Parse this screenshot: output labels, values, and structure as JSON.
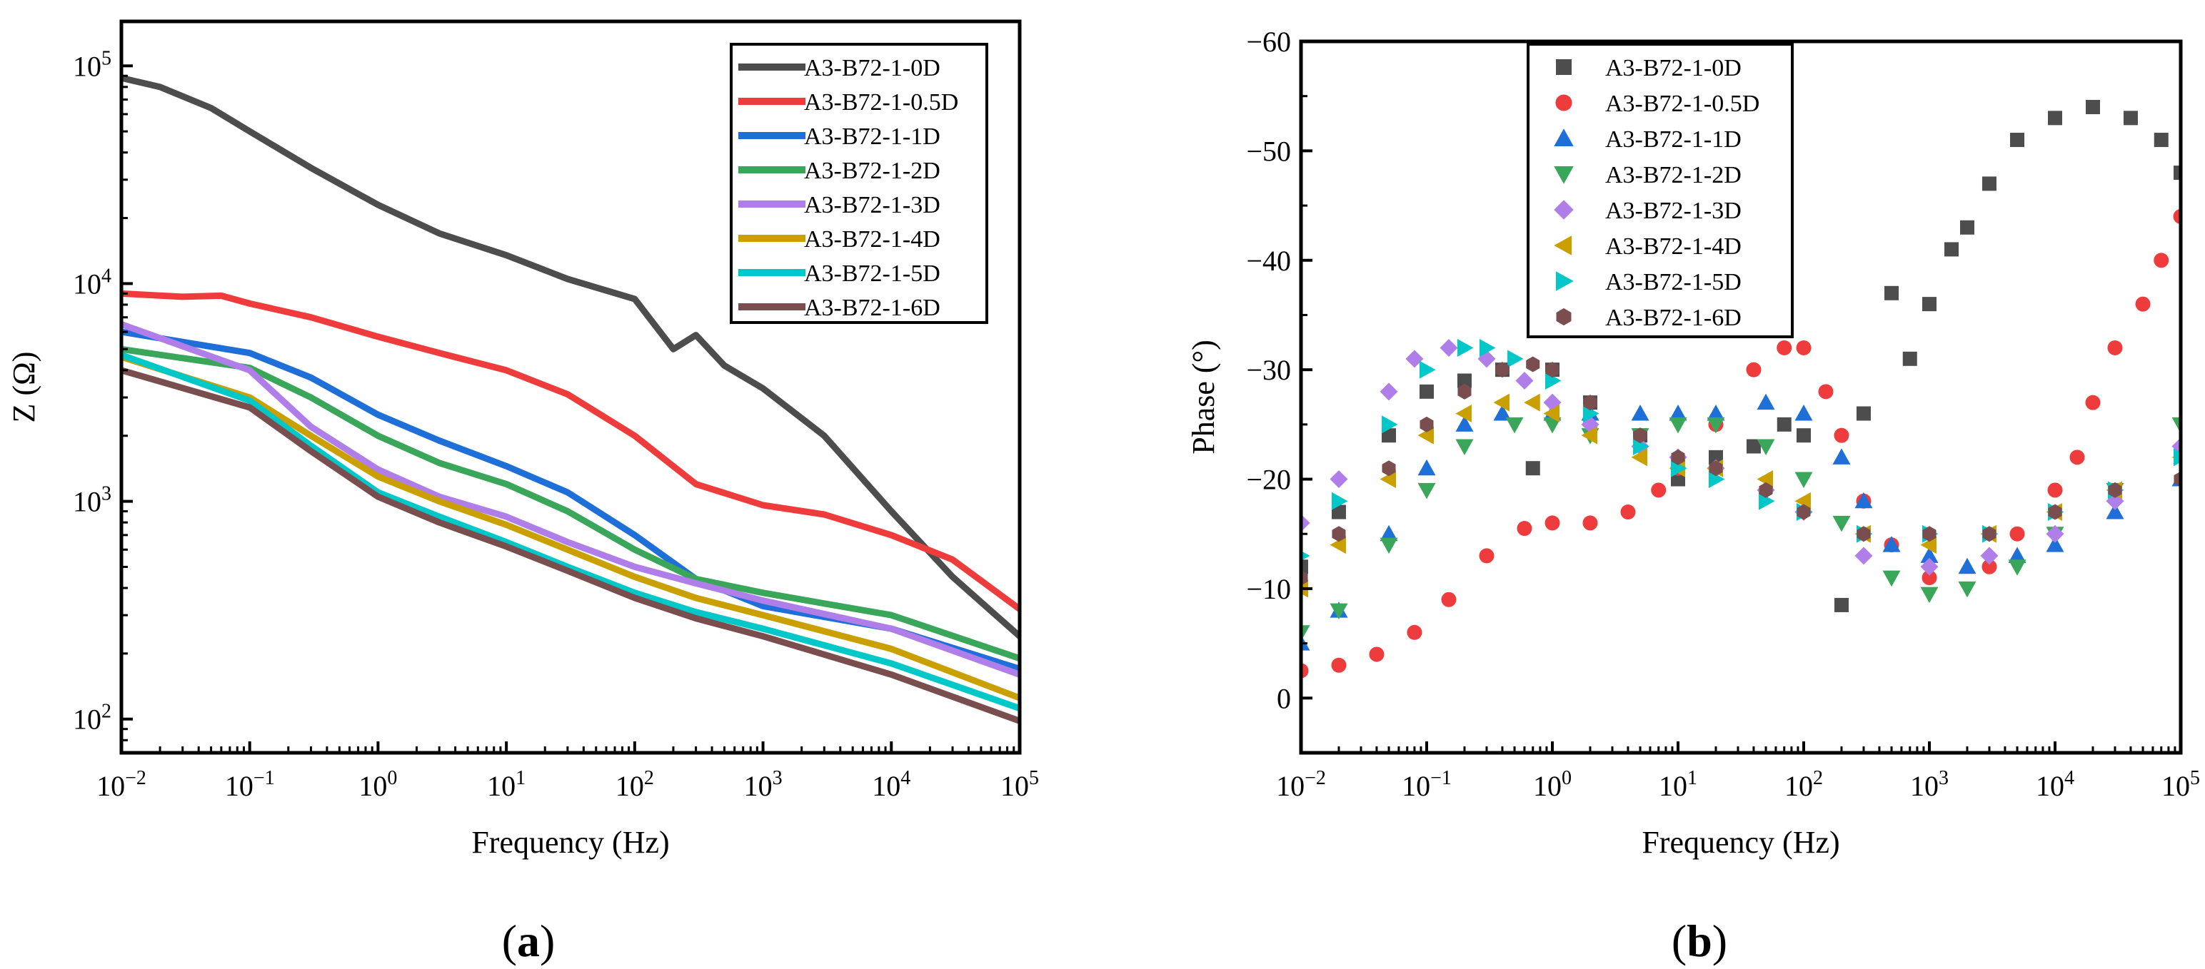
{
  "chart_data": [
    {
      "panel": "a",
      "panel_label_parts": [
        "(",
        "a",
        ")"
      ],
      "type": "line",
      "x_scale": "log",
      "y_scale": "log",
      "xlabel": "Frequency (Hz)",
      "ylabel": "Z (Ω)",
      "xlim": [
        0.01,
        100000
      ],
      "ylim": [
        70,
        160000
      ],
      "xticks": [
        {
          "value": 0.01,
          "base": "10",
          "exp": "−2"
        },
        {
          "value": 0.1,
          "base": "10",
          "exp": "−1"
        },
        {
          "value": 1,
          "base": "10",
          "exp": "0"
        },
        {
          "value": 10,
          "base": "10",
          "exp": "1"
        },
        {
          "value": 100,
          "base": "10",
          "exp": "2"
        },
        {
          "value": 1000,
          "base": "10",
          "exp": "3"
        },
        {
          "value": 10000,
          "base": "10",
          "exp": "4"
        },
        {
          "value": 100000,
          "base": "10",
          "exp": "5"
        }
      ],
      "yticks": [
        {
          "value": 100,
          "base": "10",
          "exp": "2"
        },
        {
          "value": 1000,
          "base": "10",
          "exp": "3"
        },
        {
          "value": 10000,
          "base": "10",
          "exp": "4"
        },
        {
          "value": 100000,
          "base": "10",
          "exp": "5"
        }
      ],
      "legend_position": "top-right",
      "series": [
        {
          "name": "A3-B72-1-0D",
          "color": "#4d4d4d",
          "x": [
            0.01,
            0.02,
            0.05,
            0.1,
            0.3,
            1,
            3,
            10,
            30,
            100,
            200,
            300,
            500,
            1000,
            3000,
            10000,
            30000,
            100000
          ],
          "y": [
            88000,
            80000,
            64000,
            50000,
            34000,
            23000,
            17000,
            13500,
            10500,
            8500,
            5000,
            5800,
            4200,
            3300,
            2000,
            900,
            450,
            240
          ]
        },
        {
          "name": "A3-B72-1-0.5D",
          "color": "#ee3b3b",
          "x": [
            0.01,
            0.03,
            0.06,
            0.1,
            0.3,
            1,
            3,
            10,
            30,
            100,
            300,
            1000,
            3000,
            10000,
            30000,
            100000
          ],
          "y": [
            9000,
            8700,
            8800,
            8100,
            7000,
            5700,
            4800,
            4000,
            3100,
            2000,
            1200,
            960,
            870,
            700,
            540,
            320
          ]
        },
        {
          "name": "A3-B72-1-1D",
          "color": "#1f6fd8",
          "x": [
            0.01,
            0.1,
            0.3,
            1,
            3,
            10,
            30,
            100,
            300,
            1000,
            10000,
            100000
          ],
          "y": [
            6000,
            4800,
            3700,
            2500,
            1900,
            1450,
            1100,
            700,
            440,
            330,
            260,
            170
          ]
        },
        {
          "name": "A3-B72-1-2D",
          "color": "#3aa65a",
          "x": [
            0.01,
            0.1,
            0.3,
            1,
            3,
            10,
            30,
            100,
            300,
            1000,
            10000,
            100000
          ],
          "y": [
            5000,
            4100,
            3000,
            2000,
            1500,
            1200,
            900,
            600,
            440,
            380,
            300,
            190
          ]
        },
        {
          "name": "A3-B72-1-3D",
          "color": "#b07ee8",
          "x": [
            0.01,
            0.1,
            0.3,
            1,
            3,
            10,
            30,
            100,
            300,
            1000,
            10000,
            100000
          ],
          "y": [
            6500,
            4000,
            2200,
            1400,
            1050,
            850,
            650,
            500,
            420,
            350,
            260,
            160
          ]
        },
        {
          "name": "A3-B72-1-4D",
          "color": "#c9a000",
          "x": [
            0.01,
            0.1,
            0.3,
            1,
            3,
            10,
            30,
            100,
            300,
            1000,
            10000,
            100000
          ],
          "y": [
            4600,
            3000,
            2000,
            1300,
            1000,
            780,
            600,
            450,
            360,
            300,
            210,
            125
          ]
        },
        {
          "name": "A3-B72-1-5D",
          "color": "#00c8c8",
          "x": [
            0.01,
            0.1,
            0.3,
            1,
            3,
            10,
            30,
            100,
            300,
            1000,
            10000,
            100000
          ],
          "y": [
            4700,
            2900,
            1800,
            1100,
            850,
            650,
            500,
            380,
            310,
            260,
            180,
            112
          ]
        },
        {
          "name": "A3-B72-1-6D",
          "color": "#7a4e4e",
          "x": [
            0.01,
            0.1,
            0.3,
            1,
            3,
            10,
            30,
            100,
            300,
            1000,
            10000,
            100000
          ],
          "y": [
            4000,
            2700,
            1700,
            1050,
            800,
            620,
            480,
            360,
            290,
            240,
            160,
            98
          ]
        }
      ]
    },
    {
      "panel": "b",
      "panel_label_parts": [
        "(",
        "b",
        ")"
      ],
      "type": "scatter",
      "x_scale": "log",
      "y_scale": "linear",
      "y_inverted": true,
      "xlabel": "Frequency (Hz)",
      "ylabel": "Phase (°)",
      "xlim": [
        0.01,
        100000
      ],
      "ylim": [
        5,
        -60
      ],
      "xticks": [
        {
          "value": 0.01,
          "base": "10",
          "exp": "−2"
        },
        {
          "value": 0.1,
          "base": "10",
          "exp": "−1"
        },
        {
          "value": 1,
          "base": "10",
          "exp": "0"
        },
        {
          "value": 10,
          "base": "10",
          "exp": "1"
        },
        {
          "value": 100,
          "base": "10",
          "exp": "2"
        },
        {
          "value": 1000,
          "base": "10",
          "exp": "3"
        },
        {
          "value": 10000,
          "base": "10",
          "exp": "4"
        },
        {
          "value": 100000,
          "base": "10",
          "exp": "5"
        }
      ],
      "yticks": [
        {
          "value": 0,
          "label": "0"
        },
        {
          "value": -10,
          "label": "−10"
        },
        {
          "value": -20,
          "label": "−20"
        },
        {
          "value": -30,
          "label": "−30"
        },
        {
          "value": -40,
          "label": "−40"
        },
        {
          "value": -50,
          "label": "−50"
        },
        {
          "value": -60,
          "label": "−60"
        }
      ],
      "legend_position": "top-left",
      "series": [
        {
          "name": "A3-B72-1-0D",
          "color": "#4d4d4d",
          "marker": "square",
          "x": [
            0.01,
            0.02,
            0.05,
            0.1,
            0.2,
            0.4,
            0.7,
            1,
            2,
            5,
            10,
            20,
            40,
            70,
            100,
            200,
            300,
            500,
            700,
            1000,
            1500,
            2000,
            3000,
            5000,
            10000,
            20000,
            40000,
            70000,
            100000
          ],
          "y": [
            -12,
            -17,
            -24,
            -28,
            -29,
            -30,
            -21,
            -30,
            -27,
            -24,
            -20,
            -22,
            -23,
            -25,
            -24,
            -8.5,
            -26,
            -37,
            -31,
            -36,
            -41,
            -43,
            -47,
            -51,
            -53,
            -54,
            -53,
            -51,
            -48
          ]
        },
        {
          "name": "A3-B72-1-0.5D",
          "color": "#ee3b3b",
          "marker": "circle",
          "x": [
            0.01,
            0.02,
            0.04,
            0.08,
            0.15,
            0.3,
            0.6,
            1,
            2,
            4,
            7,
            10,
            20,
            40,
            70,
            100,
            150,
            200,
            300,
            500,
            1000,
            3000,
            5000,
            10000,
            15000,
            20000,
            30000,
            50000,
            70000,
            100000
          ],
          "y": [
            -2.5,
            -3,
            -4,
            -6,
            -9,
            -13,
            -15.5,
            -16,
            -16,
            -17,
            -19,
            -21,
            -25,
            -30,
            -32,
            -32,
            -28,
            -24,
            -18,
            -14,
            -11,
            -12,
            -15,
            -19,
            -22,
            -27,
            -32,
            -36,
            -40,
            -44
          ]
        },
        {
          "name": "A3-B72-1-1D",
          "color": "#1f6fd8",
          "marker": "triangle-up",
          "x": [
            0.01,
            0.02,
            0.05,
            0.1,
            0.2,
            0.4,
            1,
            2,
            5,
            10,
            20,
            50,
            100,
            200,
            300,
            500,
            1000,
            2000,
            5000,
            10000,
            30000,
            100000
          ],
          "y": [
            -5,
            -8,
            -15,
            -21,
            -25,
            -26,
            -26,
            -26,
            -26,
            -26,
            -26,
            -27,
            -26,
            -22,
            -18,
            -14,
            -13,
            -12,
            -13,
            -14,
            -17,
            -20
          ]
        },
        {
          "name": "A3-B72-1-2D",
          "color": "#3aa65a",
          "marker": "triangle-down",
          "x": [
            0.01,
            0.02,
            0.05,
            0.1,
            0.2,
            0.5,
            1,
            2,
            5,
            10,
            20,
            50,
            100,
            200,
            500,
            1000,
            2000,
            5000,
            10000,
            30000,
            100000
          ],
          "y": [
            -6,
            -8,
            -14,
            -19,
            -23,
            -25,
            -25,
            -24,
            -24,
            -25,
            -25,
            -23,
            -20,
            -16,
            -11,
            -9.5,
            -10,
            -12,
            -15,
            -19,
            -25
          ]
        },
        {
          "name": "A3-B72-1-3D",
          "color": "#b07ee8",
          "marker": "diamond",
          "x": [
            0.01,
            0.02,
            0.05,
            0.08,
            0.15,
            0.3,
            0.6,
            1,
            2,
            5,
            10,
            20,
            50,
            100,
            300,
            1000,
            3000,
            10000,
            30000,
            100000
          ],
          "y": [
            -16,
            -20,
            -28,
            -31,
            -32,
            -31,
            -29,
            -27,
            -25,
            -23,
            -22,
            -21,
            -19,
            -17,
            -13,
            -12,
            -13,
            -15,
            -18,
            -23
          ]
        },
        {
          "name": "A3-B72-1-4D",
          "color": "#c9a000",
          "marker": "triangle-left",
          "x": [
            0.01,
            0.02,
            0.05,
            0.1,
            0.2,
            0.4,
            0.7,
            1,
            2,
            5,
            10,
            20,
            50,
            100,
            300,
            1000,
            3000,
            10000,
            30000,
            100000
          ],
          "y": [
            -10,
            -14,
            -20,
            -24,
            -26,
            -27,
            -27,
            -26,
            -24,
            -22,
            -21,
            -21,
            -20,
            -18,
            -15,
            -14,
            -15,
            -17,
            -19,
            -22
          ]
        },
        {
          "name": "A3-B72-1-5D",
          "color": "#00c8c8",
          "marker": "triangle-right",
          "x": [
            0.01,
            0.02,
            0.05,
            0.1,
            0.2,
            0.3,
            0.5,
            1,
            2,
            5,
            10,
            20,
            50,
            100,
            300,
            1000,
            3000,
            10000,
            30000,
            100000
          ],
          "y": [
            -13,
            -18,
            -25,
            -30,
            -32,
            -32,
            -31,
            -29,
            -26,
            -23,
            -21,
            -20,
            -18,
            -17,
            -15,
            -15,
            -15,
            -17,
            -19,
            -22
          ]
        },
        {
          "name": "A3-B72-1-6D",
          "color": "#7a4e4e",
          "marker": "hexagon",
          "x": [
            0.01,
            0.02,
            0.05,
            0.1,
            0.2,
            0.4,
            0.7,
            1,
            2,
            5,
            10,
            20,
            50,
            100,
            300,
            1000,
            3000,
            10000,
            30000,
            100000
          ],
          "y": [
            -11,
            -15,
            -21,
            -25,
            -28,
            -30,
            -30.5,
            -30,
            -27,
            -24,
            -22,
            -21,
            -19,
            -17,
            -15,
            -15,
            -15,
            -17,
            -19,
            -20
          ]
        }
      ]
    }
  ]
}
